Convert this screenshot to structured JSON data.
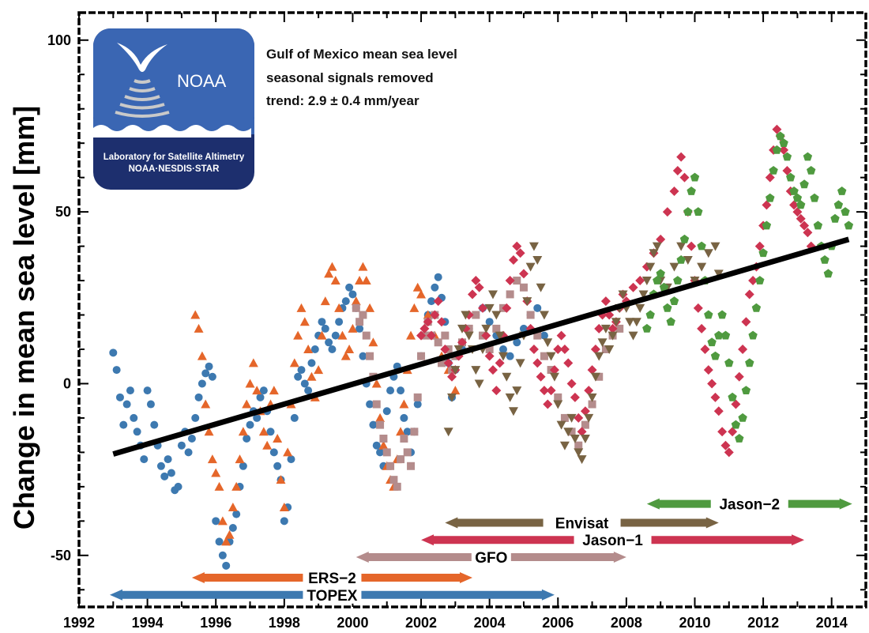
{
  "chart_data": {
    "type": "scatter",
    "title": "",
    "xlabel": "",
    "ylabel": "Change in mean sea level [mm]",
    "xlim": [
      1992,
      2015
    ],
    "ylim": [
      -65,
      108
    ],
    "x_ticks": [
      1992,
      1994,
      1996,
      1998,
      2000,
      2002,
      2004,
      2006,
      2008,
      2010,
      2012,
      2014
    ],
    "y_ticks": [
      -50,
      0,
      50,
      100
    ],
    "grid": false,
    "info_lines": [
      "Gulf of Mexico mean sea level",
      "seasonal signals removed",
      "trend:  2.9 ± 0.4 mm/year"
    ],
    "trend": {
      "x": [
        1993.0,
        2014.5
      ],
      "y": [
        -20.5,
        42.0
      ],
      "color": "#000000"
    },
    "logo": {
      "name": "NOAA",
      "line1": "Laboratory for Satellite Altimetry",
      "line2": "NOAA·NESDIS·STAR"
    },
    "missions": [
      {
        "name": "TOPEX",
        "start": 1992.9,
        "end": 2005.9,
        "color": "#3d79b0",
        "level": -61.5
      },
      {
        "name": "ERS-2",
        "start": 1995.3,
        "end": 2003.5,
        "color": "#e5662a",
        "level": -56.5
      },
      {
        "name": "GFO",
        "start": 2000.1,
        "end": 2008.0,
        "color": "#b48c8c",
        "level": -50.5
      },
      {
        "name": "Jason-1",
        "start": 2002.0,
        "end": 2013.2,
        "color": "#cd3451",
        "level": -45.5
      },
      {
        "name": "Envisat",
        "start": 2002.7,
        "end": 2010.7,
        "color": "#786343",
        "level": -40.5
      },
      {
        "name": "Jason-2",
        "start": 2008.6,
        "end": 2014.6,
        "color": "#4f9a3f",
        "level": -35.0
      }
    ],
    "series": [
      {
        "mission": "TOPEX",
        "marker": "circle",
        "color": "#3d79b0",
        "x": [
          1993.0,
          1993.1,
          1993.2,
          1993.3,
          1993.4,
          1993.5,
          1993.6,
          1993.7,
          1993.8,
          1993.9,
          1994.0,
          1994.1,
          1994.2,
          1994.3,
          1994.4,
          1994.5,
          1994.6,
          1994.7,
          1994.8,
          1994.9,
          1995.0,
          1995.1,
          1995.2,
          1995.3,
          1995.4,
          1995.5,
          1995.6,
          1995.7,
          1995.8,
          1995.9,
          1996.0,
          1996.1,
          1996.2,
          1996.3,
          1996.4,
          1996.5,
          1996.6,
          1996.7,
          1996.8,
          1996.9,
          1997.0,
          1997.1,
          1997.2,
          1997.3,
          1997.4,
          1997.5,
          1997.6,
          1997.7,
          1997.8,
          1997.9,
          1998.0,
          1998.1,
          1998.2,
          1998.3,
          1998.4,
          1998.5,
          1998.6,
          1998.7,
          1998.8,
          1998.9,
          1999.0,
          1999.1,
          1999.2,
          1999.3,
          1999.4,
          1999.5,
          1999.6,
          1999.7,
          1999.8,
          1999.9,
          2000.0,
          2000.1,
          2000.2,
          2000.3,
          2000.4,
          2000.5,
          2000.6,
          2000.7,
          2000.8,
          2000.9,
          2001.0,
          2001.1,
          2001.2,
          2001.3,
          2001.4,
          2001.5,
          2001.6,
          2001.7,
          2001.8,
          2001.9,
          2002.0,
          2002.1,
          2002.2,
          2002.3,
          2002.4,
          2002.5,
          2002.6,
          2002.7,
          2002.8,
          2002.9,
          2003.0,
          2003.2,
          2003.4,
          2003.6,
          2003.8,
          2004.0,
          2004.2,
          2004.4,
          2004.6,
          2004.8,
          2005.0,
          2005.2,
          2005.4,
          2005.6
        ],
        "y": [
          9,
          4,
          -4,
          -12,
          -6,
          -2,
          -10,
          -14,
          -18,
          -22,
          -2,
          -6,
          -12,
          -18,
          -24,
          -27,
          -22,
          -26,
          -31,
          -30,
          -18,
          -14,
          -20,
          -16,
          -10,
          -4,
          0,
          3,
          5,
          2,
          -40,
          -46,
          -50,
          -53,
          -46,
          -42,
          -38,
          -30,
          -24,
          -16,
          -12,
          -8,
          -10,
          -4,
          -2,
          -8,
          -14,
          -20,
          -24,
          -28,
          -40,
          -36,
          -22,
          -10,
          2,
          4,
          0,
          -2,
          6,
          10,
          14,
          18,
          16,
          12,
          10,
          14,
          18,
          22,
          24,
          28,
          26,
          22,
          16,
          8,
          0,
          -6,
          -12,
          -18,
          -20,
          -24,
          -8,
          -2,
          2,
          5,
          -2,
          -10,
          -14,
          -20,
          -14,
          -6,
          8,
          14,
          20,
          24,
          28,
          31,
          25,
          18,
          6,
          -4,
          4,
          10,
          16,
          20,
          22,
          18,
          14,
          10,
          8,
          12,
          16,
          20,
          22,
          14
        ]
      },
      {
        "mission": "ERS-2",
        "marker": "triangle",
        "color": "#e5662a",
        "x": [
          1995.4,
          1995.5,
          1995.6,
          1995.7,
          1995.8,
          1995.9,
          1996.0,
          1996.1,
          1996.2,
          1996.3,
          1996.4,
          1996.5,
          1996.6,
          1996.7,
          1996.8,
          1996.9,
          1997.0,
          1997.1,
          1997.2,
          1997.3,
          1997.4,
          1997.5,
          1997.6,
          1997.7,
          1997.8,
          1997.9,
          1998.0,
          1998.1,
          1998.2,
          1998.3,
          1998.4,
          1998.5,
          1998.6,
          1998.7,
          1998.8,
          1998.9,
          1999.0,
          1999.1,
          1999.2,
          1999.3,
          1999.4,
          1999.5,
          1999.6,
          1999.7,
          1999.8,
          1999.9,
          2000.0,
          2000.1,
          2000.2,
          2000.3,
          2000.4,
          2000.5,
          2000.6,
          2000.7,
          2000.8,
          2000.9,
          2001.0,
          2001.1,
          2001.2,
          2001.3,
          2001.4,
          2001.5,
          2001.6,
          2001.7,
          2001.8,
          2001.9,
          2002.0,
          2002.2,
          2002.4,
          2002.6,
          2002.8,
          2003.0
        ],
        "y": [
          20,
          16,
          8,
          -6,
          -14,
          -22,
          -26,
          -30,
          -40,
          -46,
          -44,
          -36,
          -30,
          -22,
          -14,
          -6,
          0,
          6,
          -2,
          -8,
          -14,
          -18,
          -6,
          -2,
          -16,
          -28,
          -36,
          -20,
          -6,
          6,
          14,
          22,
          18,
          10,
          2,
          -4,
          4,
          14,
          24,
          32,
          34,
          30,
          22,
          14,
          8,
          10,
          16,
          24,
          30,
          34,
          30,
          22,
          12,
          0,
          -10,
          -18,
          -24,
          -28,
          -30,
          -22,
          -14,
          -6,
          4,
          14,
          22,
          28,
          26,
          20,
          14,
          8,
          4,
          -2
        ]
      },
      {
        "mission": "GFO",
        "marker": "square",
        "color": "#b48c8c",
        "x": [
          2000.1,
          2000.2,
          2000.3,
          2000.4,
          2000.5,
          2000.6,
          2000.7,
          2000.8,
          2000.9,
          2001.0,
          2001.1,
          2001.2,
          2001.3,
          2001.4,
          2001.5,
          2001.6,
          2001.7,
          2001.8,
          2001.9,
          2002.0,
          2002.1,
          2002.2,
          2002.3,
          2002.4,
          2002.5,
          2002.6,
          2002.7,
          2002.8,
          2002.9,
          2003.0,
          2003.2,
          2003.4,
          2003.6,
          2003.8,
          2004.0,
          2004.2,
          2004.4,
          2004.6,
          2004.8,
          2005.0,
          2005.2,
          2005.4,
          2005.6,
          2005.8,
          2006.0,
          2006.2,
          2006.4,
          2006.6,
          2006.8,
          2007.0,
          2007.2,
          2007.4,
          2007.6,
          2007.8
        ],
        "y": [
          22,
          18,
          20,
          14,
          8,
          2,
          -6,
          -12,
          -16,
          -20,
          -24,
          -28,
          -30,
          -22,
          -16,
          -20,
          -24,
          -14,
          -4,
          8,
          14,
          18,
          14,
          20,
          12,
          6,
          14,
          10,
          4,
          8,
          12,
          16,
          20,
          14,
          10,
          16,
          22,
          26,
          30,
          28,
          20,
          14,
          8,
          4,
          -4,
          -10,
          -14,
          -18,
          -12,
          -6,
          2,
          10,
          14,
          16
        ]
      },
      {
        "mission": "Jason-1",
        "marker": "diamond",
        "color": "#cd3451",
        "x": [
          2002.0,
          2002.1,
          2002.2,
          2002.3,
          2002.4,
          2002.5,
          2002.6,
          2002.7,
          2002.8,
          2002.9,
          2003.0,
          2003.1,
          2003.2,
          2003.3,
          2003.4,
          2003.5,
          2003.6,
          2003.7,
          2003.8,
          2003.9,
          2004.0,
          2004.1,
          2004.2,
          2004.3,
          2004.4,
          2004.5,
          2004.6,
          2004.7,
          2004.8,
          2004.9,
          2005.0,
          2005.1,
          2005.2,
          2005.3,
          2005.4,
          2005.5,
          2005.6,
          2005.7,
          2005.8,
          2005.9,
          2006.0,
          2006.1,
          2006.2,
          2006.3,
          2006.4,
          2006.5,
          2006.6,
          2006.7,
          2006.8,
          2006.9,
          2007.0,
          2007.1,
          2007.2,
          2007.3,
          2007.4,
          2007.5,
          2007.6,
          2007.7,
          2007.8,
          2007.9,
          2008.0,
          2008.2,
          2008.4,
          2008.6,
          2008.8,
          2009.0,
          2009.2,
          2009.4,
          2009.5,
          2009.6,
          2009.7,
          2009.8,
          2009.9,
          2010.0,
          2010.1,
          2010.2,
          2010.3,
          2010.4,
          2010.5,
          2010.6,
          2010.7,
          2010.8,
          2010.9,
          2011.0,
          2011.1,
          2011.2,
          2011.3,
          2011.4,
          2011.5,
          2011.6,
          2011.7,
          2011.8,
          2011.9,
          2012.0,
          2012.1,
          2012.2,
          2012.3,
          2012.4,
          2012.5,
          2012.6,
          2012.7,
          2012.8,
          2012.9,
          2013.0,
          2013.1,
          2013.2,
          2013.3,
          2013.4
        ],
        "y": [
          14,
          16,
          18,
          14,
          20,
          24,
          18,
          10,
          6,
          2,
          4,
          8,
          12,
          16,
          20,
          26,
          30,
          28,
          22,
          14,
          8,
          4,
          -2,
          6,
          14,
          22,
          30,
          36,
          40,
          38,
          32,
          24,
          16,
          10,
          6,
          2,
          -2,
          -6,
          -2,
          4,
          10,
          14,
          10,
          6,
          0,
          -4,
          -10,
          -14,
          -8,
          -2,
          4,
          10,
          16,
          20,
          24,
          20,
          16,
          18,
          22,
          26,
          24,
          28,
          30,
          34,
          38,
          42,
          50,
          56,
          62,
          66,
          60,
          50,
          40,
          30,
          22,
          16,
          10,
          4,
          0,
          -4,
          -8,
          -14,
          -18,
          -20,
          -14,
          -6,
          2,
          10,
          18,
          26,
          30,
          34,
          40,
          46,
          52,
          60,
          68,
          74,
          72,
          68,
          62,
          56,
          52,
          50,
          48,
          46,
          44,
          40
        ]
      },
      {
        "mission": "Envisat",
        "marker": "triangle-down",
        "color": "#786343",
        "x": [
          2002.8,
          2002.9,
          2003.0,
          2003.1,
          2003.2,
          2003.3,
          2003.4,
          2003.5,
          2003.6,
          2003.7,
          2003.8,
          2003.9,
          2004.0,
          2004.1,
          2004.2,
          2004.3,
          2004.4,
          2004.5,
          2004.6,
          2004.7,
          2004.8,
          2004.9,
          2005.0,
          2005.1,
          2005.2,
          2005.3,
          2005.4,
          2005.5,
          2005.6,
          2005.7,
          2005.8,
          2005.9,
          2006.0,
          2006.1,
          2006.2,
          2006.3,
          2006.4,
          2006.5,
          2006.6,
          2006.7,
          2006.8,
          2006.9,
          2007.0,
          2007.1,
          2007.2,
          2007.3,
          2007.4,
          2007.5,
          2007.6,
          2007.7,
          2007.8,
          2007.9,
          2008.0,
          2008.1,
          2008.2,
          2008.3,
          2008.4,
          2008.5,
          2008.6,
          2008.7,
          2008.8,
          2008.9,
          2009.0,
          2009.2,
          2009.4,
          2009.6,
          2009.8,
          2010.0,
          2010.2,
          2010.4,
          2010.6,
          2010.7
        ],
        "y": [
          -14,
          -4,
          4,
          10,
          16,
          20,
          14,
          10,
          4,
          0,
          10,
          16,
          22,
          26,
          20,
          14,
          8,
          2,
          -4,
          -8,
          -2,
          6,
          14,
          24,
          34,
          40,
          36,
          28,
          20,
          12,
          8,
          2,
          -6,
          -12,
          -18,
          -14,
          -10,
          -16,
          -20,
          -22,
          -16,
          -10,
          -4,
          2,
          8,
          12,
          16,
          10,
          14,
          18,
          22,
          26,
          22,
          18,
          14,
          18,
          22,
          26,
          30,
          34,
          38,
          40,
          30,
          28,
          34,
          40,
          36,
          30,
          34,
          38,
          40,
          32
        ]
      },
      {
        "mission": "Jason-2",
        "marker": "pentagon",
        "color": "#4f9a3f",
        "x": [
          2008.6,
          2008.7,
          2008.8,
          2008.9,
          2009.0,
          2009.1,
          2009.2,
          2009.3,
          2009.4,
          2009.5,
          2009.6,
          2009.7,
          2009.8,
          2009.9,
          2010.0,
          2010.1,
          2010.2,
          2010.3,
          2010.4,
          2010.5,
          2010.6,
          2010.7,
          2010.8,
          2010.9,
          2011.0,
          2011.1,
          2011.2,
          2011.3,
          2011.4,
          2011.5,
          2011.6,
          2011.7,
          2011.8,
          2011.9,
          2012.0,
          2012.1,
          2012.2,
          2012.3,
          2012.4,
          2012.5,
          2012.6,
          2012.7,
          2012.8,
          2012.9,
          2013.0,
          2013.1,
          2013.2,
          2013.3,
          2013.4,
          2013.5,
          2013.6,
          2013.7,
          2013.8,
          2013.9,
          2014.0,
          2014.1,
          2014.2,
          2014.3,
          2014.4,
          2014.5
        ],
        "y": [
          16,
          20,
          26,
          30,
          32,
          28,
          22,
          18,
          24,
          30,
          36,
          42,
          50,
          56,
          60,
          50,
          40,
          30,
          20,
          12,
          8,
          14,
          20,
          14,
          6,
          -4,
          -12,
          -16,
          -10,
          -2,
          6,
          14,
          22,
          30,
          38,
          46,
          54,
          62,
          68,
          72,
          70,
          66,
          60,
          56,
          54,
          52,
          58,
          66,
          62,
          54,
          46,
          40,
          36,
          32,
          40,
          48,
          52,
          56,
          50,
          46
        ]
      }
    ]
  }
}
